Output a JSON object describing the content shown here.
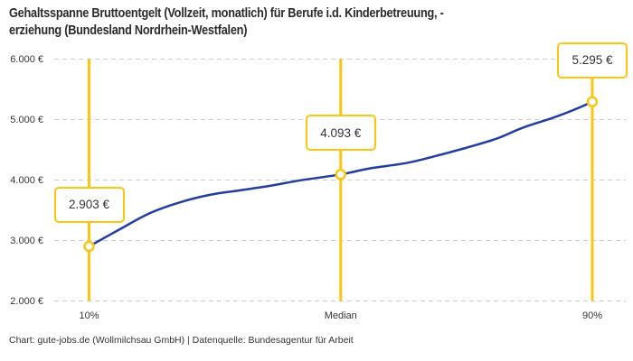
{
  "header": {
    "title_line1": "Gehaltsspanne Bruttoentgelt (Vollzeit, monatlich) für Berufe i.d. Kinderbetreuung, -",
    "title_line2": "erziehung (Bundesland Nordrhein-Westfalen)"
  },
  "footer": {
    "credit": "Chart: gute-jobs.de (Wollmilchsau GmbH) | Datenquelle: Bundesagentur für Arbeit"
  },
  "chart_data": {
    "type": "line",
    "title": "Gehaltsspanne Bruttoentgelt (Vollzeit, monatlich) für Berufe i.d. Kinderbetreuung, -erziehung (Bundesland Nordrhein-Westfalen)",
    "categories": [
      "10%",
      "Median",
      "90%"
    ],
    "values": [
      2903,
      4093,
      5295
    ],
    "value_labels": [
      "2.903 €",
      "4.093 €",
      "5.295 €"
    ],
    "ylim": [
      2000,
      6000
    ],
    "yticks": [
      {
        "value": 2000,
        "label": "2.000 €"
      },
      {
        "value": 3000,
        "label": "3.000 €"
      },
      {
        "value": 4000,
        "label": "4.000 €"
      },
      {
        "value": 5000,
        "label": "5.000 €"
      },
      {
        "value": 6000,
        "label": "6.000 €"
      }
    ],
    "curve_points": [
      [
        0.0,
        2903
      ],
      [
        0.06,
        3180
      ],
      [
        0.12,
        3450
      ],
      [
        0.18,
        3630
      ],
      [
        0.24,
        3755
      ],
      [
        0.3,
        3830
      ],
      [
        0.36,
        3905
      ],
      [
        0.42,
        3995
      ],
      [
        0.5,
        4093
      ],
      [
        0.56,
        4195
      ],
      [
        0.63,
        4280
      ],
      [
        0.69,
        4400
      ],
      [
        0.75,
        4535
      ],
      [
        0.81,
        4685
      ],
      [
        0.86,
        4860
      ],
      [
        0.92,
        5025
      ],
      [
        0.96,
        5150
      ],
      [
        1.0,
        5295
      ]
    ],
    "layout": {
      "grid": "horizontal-dashed",
      "legend": "none"
    },
    "colors": {
      "line": "#223DA0",
      "accent": "#FBC512",
      "marker_fill": "#ffffff",
      "grid": "#cccccc",
      "text": "#333333"
    }
  }
}
